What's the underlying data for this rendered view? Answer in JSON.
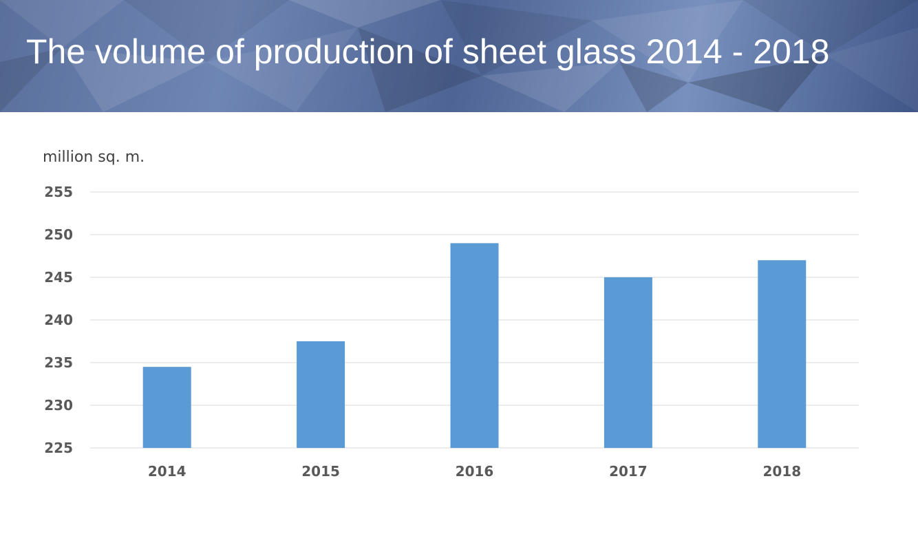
{
  "header": {
    "title": "The volume of production of sheet glass 2014 - 2018"
  },
  "colors": {
    "bar": "#5b9bd5",
    "gridline": "#d9d9d9",
    "tick_text": "#595959",
    "banner": "#5a6f9c"
  },
  "chart_data": {
    "type": "bar",
    "title": "The volume of production of sheet glass 2014 - 2018",
    "ylabel": "million sq. m.",
    "xlabel": "",
    "categories": [
      "2014",
      "2015",
      "2016",
      "2017",
      "2018"
    ],
    "values": [
      234.5,
      237.5,
      249,
      245,
      247
    ],
    "ylim": [
      225,
      255
    ],
    "yticks": [
      "225",
      "230",
      "235",
      "240",
      "245",
      "250",
      "255"
    ],
    "grid": true,
    "legend": "none"
  }
}
